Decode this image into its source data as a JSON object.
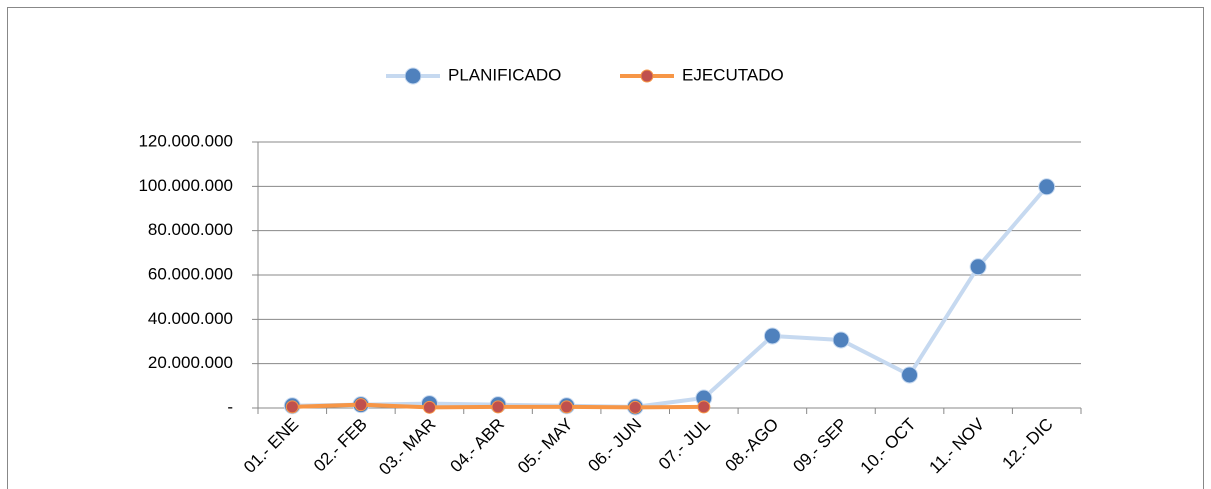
{
  "chart_data": {
    "type": "line",
    "categories": [
      "01.- ENE",
      "02.- FEB",
      "03.- MAR",
      "04.- ABR",
      "05.- MAY",
      "06.- JUN",
      "07.- JUL",
      "08.-AGO",
      "09.- SEP",
      "10.- OCT",
      "11.- NOV",
      "12.- DIC"
    ],
    "series": [
      {
        "name": "PLANIFICADO",
        "color": "#c6d9f0",
        "marker_color": "#4f81bd",
        "values": [
          1000000,
          1500000,
          2000000,
          1500000,
          1000000,
          500000,
          4500000,
          32500000,
          30700000,
          14900000,
          63700000,
          99800000
        ]
      },
      {
        "name": "EJECUTADO",
        "color": "#f79646",
        "marker_color": "#c0504d",
        "values": [
          500000,
          1500000,
          300000,
          500000,
          500000,
          300000,
          500000,
          null,
          null,
          null,
          null,
          null
        ]
      }
    ],
    "ylim": [
      0,
      120000000
    ],
    "yticks": [
      {
        "value": 0,
        "label": "-"
      },
      {
        "value": 20000000,
        "label": "20.000.000"
      },
      {
        "value": 40000000,
        "label": "40.000.000"
      },
      {
        "value": 60000000,
        "label": "60.000.000"
      },
      {
        "value": 80000000,
        "label": "80.000.000"
      },
      {
        "value": 100000000,
        "label": "100.000.000"
      },
      {
        "value": 120000000,
        "label": "120.000.000"
      }
    ],
    "grid": true,
    "legend": "top"
  }
}
